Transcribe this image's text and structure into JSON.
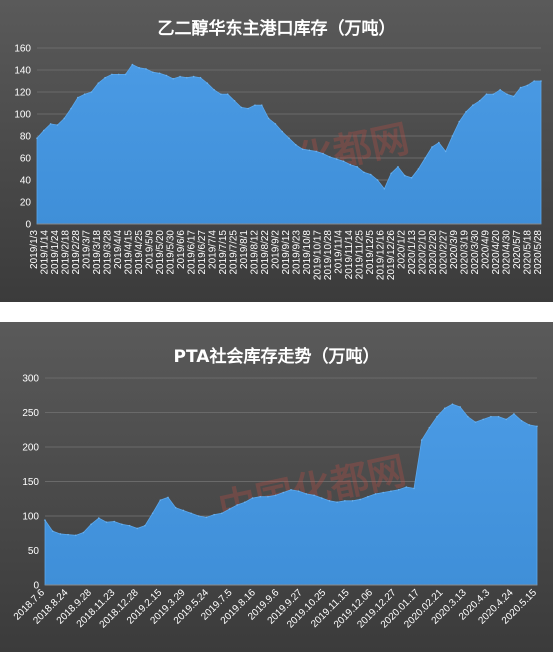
{
  "chart_data": [
    {
      "type": "area",
      "title": "乙二醇华东主港口库存（万吨）",
      "xlabel": "",
      "ylabel": "",
      "ylim": [
        0,
        160
      ],
      "yticks": [
        0,
        20,
        40,
        60,
        80,
        100,
        120,
        140,
        160
      ],
      "grid": true,
      "legend": "none",
      "color": "#3f8fd8",
      "x_labels": [
        "2019/1/3",
        "2019/1/14",
        "2019/1/24",
        "2019/2/18",
        "2019/2/28",
        "2019/3/7",
        "2019/3/18",
        "2019/3/28",
        "2019/4/4",
        "2019/4/15",
        "2019/4/25",
        "2019/5/9",
        "2019/5/20",
        "2019/5/30",
        "2019/6/6",
        "2019/6/17",
        "2019/6/27",
        "2019/7/4",
        "2019/7/15",
        "2019/7/25",
        "2019/8/1",
        "2019/8/12",
        "2019/8/22",
        "2019/9/2",
        "2019/9/12",
        "2019/9/23",
        "2019/10/8",
        "2019/10/17",
        "2019/10/28",
        "2019/11/4",
        "2019/11/14",
        "2019/11/25",
        "2019/12/5",
        "2019/12/16",
        "2019/12/26",
        "2020/1/2",
        "2020/1/13",
        "2020/2/10",
        "2020/2/20",
        "2020/2/27",
        "2020/3/9",
        "2020/3/19",
        "2020/3/30",
        "2020/4/9",
        "2020/4/20",
        "2020/4/30",
        "2020/5/7",
        "2020/5/18",
        "2020/5/28"
      ],
      "values": [
        78,
        85,
        91,
        90,
        96,
        105,
        115,
        118,
        120,
        128,
        133,
        136,
        136,
        136,
        145,
        142,
        141,
        138,
        137,
        135,
        132,
        134,
        133,
        134,
        133,
        128,
        122,
        118,
        118,
        112,
        106,
        105,
        108,
        108,
        96,
        91,
        84,
        78,
        72,
        68,
        67,
        66,
        64,
        61,
        59,
        57,
        54,
        52,
        47,
        45,
        40,
        32,
        46,
        52,
        44,
        42,
        50,
        60,
        70,
        74,
        66,
        80,
        93,
        102,
        108,
        112,
        118,
        118,
        122,
        118,
        116,
        124,
        126,
        130,
        130
      ],
      "watermark": "中国化都网"
    },
    {
      "type": "area",
      "title": "PTA社会库存走势（万吨）",
      "xlabel": "",
      "ylabel": "",
      "ylim": [
        0,
        300
      ],
      "yticks": [
        0,
        50,
        100,
        150,
        200,
        250,
        300
      ],
      "grid": true,
      "legend": "none",
      "color": "#3f8fd8",
      "x_labels": [
        "2018.7.6",
        "2018.8.24",
        "2018.9.28",
        "2018.11.23",
        "2018.12.28",
        "2019.2.15",
        "2019.3.29",
        "2019.5.24",
        "2019.7.5",
        "2019.8.16",
        "2019.9.6",
        "2019.9.27",
        "2019.10.25",
        "2019.11.15",
        "2019.12.06",
        "2019.12.27",
        "2020.01.17",
        "2020.02.21",
        "2020.3.13",
        "2020.4.3",
        "2020.4.24",
        "2020.5.15"
      ],
      "values": [
        94,
        78,
        74,
        73,
        72,
        76,
        88,
        97,
        91,
        92,
        88,
        86,
        82,
        86,
        104,
        123,
        127,
        112,
        108,
        104,
        100,
        98,
        102,
        104,
        110,
        116,
        120,
        126,
        128,
        128,
        130,
        134,
        138,
        136,
        132,
        130,
        126,
        122,
        120,
        122,
        122,
        124,
        128,
        132,
        134,
        136,
        138,
        142,
        140,
        210,
        228,
        244,
        256,
        262,
        258,
        244,
        236,
        240,
        244,
        244,
        240,
        248,
        238,
        232,
        230
      ],
      "watermark": "中国化都网"
    }
  ]
}
